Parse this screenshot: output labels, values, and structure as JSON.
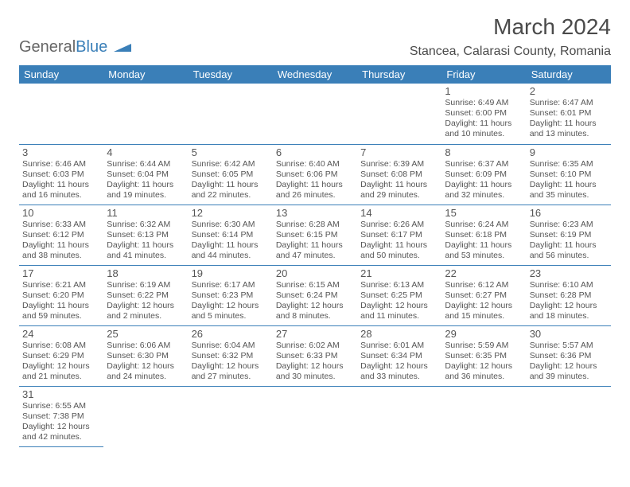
{
  "logo": {
    "part1": "General",
    "part2": "Blue"
  },
  "header": {
    "title": "March 2024",
    "location": "Stancea, Calarasi County, Romania"
  },
  "calendar": {
    "day_headers": [
      "Sunday",
      "Monday",
      "Tuesday",
      "Wednesday",
      "Thursday",
      "Friday",
      "Saturday"
    ],
    "first_weekday_index": 5,
    "days": [
      {
        "n": 1,
        "sr": "6:49 AM",
        "ss": "6:00 PM",
        "dl": "11 hours and 10 minutes."
      },
      {
        "n": 2,
        "sr": "6:47 AM",
        "ss": "6:01 PM",
        "dl": "11 hours and 13 minutes."
      },
      {
        "n": 3,
        "sr": "6:46 AM",
        "ss": "6:03 PM",
        "dl": "11 hours and 16 minutes."
      },
      {
        "n": 4,
        "sr": "6:44 AM",
        "ss": "6:04 PM",
        "dl": "11 hours and 19 minutes."
      },
      {
        "n": 5,
        "sr": "6:42 AM",
        "ss": "6:05 PM",
        "dl": "11 hours and 22 minutes."
      },
      {
        "n": 6,
        "sr": "6:40 AM",
        "ss": "6:06 PM",
        "dl": "11 hours and 26 minutes."
      },
      {
        "n": 7,
        "sr": "6:39 AM",
        "ss": "6:08 PM",
        "dl": "11 hours and 29 minutes."
      },
      {
        "n": 8,
        "sr": "6:37 AM",
        "ss": "6:09 PM",
        "dl": "11 hours and 32 minutes."
      },
      {
        "n": 9,
        "sr": "6:35 AM",
        "ss": "6:10 PM",
        "dl": "11 hours and 35 minutes."
      },
      {
        "n": 10,
        "sr": "6:33 AM",
        "ss": "6:12 PM",
        "dl": "11 hours and 38 minutes."
      },
      {
        "n": 11,
        "sr": "6:32 AM",
        "ss": "6:13 PM",
        "dl": "11 hours and 41 minutes."
      },
      {
        "n": 12,
        "sr": "6:30 AM",
        "ss": "6:14 PM",
        "dl": "11 hours and 44 minutes."
      },
      {
        "n": 13,
        "sr": "6:28 AM",
        "ss": "6:15 PM",
        "dl": "11 hours and 47 minutes."
      },
      {
        "n": 14,
        "sr": "6:26 AM",
        "ss": "6:17 PM",
        "dl": "11 hours and 50 minutes."
      },
      {
        "n": 15,
        "sr": "6:24 AM",
        "ss": "6:18 PM",
        "dl": "11 hours and 53 minutes."
      },
      {
        "n": 16,
        "sr": "6:23 AM",
        "ss": "6:19 PM",
        "dl": "11 hours and 56 minutes."
      },
      {
        "n": 17,
        "sr": "6:21 AM",
        "ss": "6:20 PM",
        "dl": "11 hours and 59 minutes."
      },
      {
        "n": 18,
        "sr": "6:19 AM",
        "ss": "6:22 PM",
        "dl": "12 hours and 2 minutes."
      },
      {
        "n": 19,
        "sr": "6:17 AM",
        "ss": "6:23 PM",
        "dl": "12 hours and 5 minutes."
      },
      {
        "n": 20,
        "sr": "6:15 AM",
        "ss": "6:24 PM",
        "dl": "12 hours and 8 minutes."
      },
      {
        "n": 21,
        "sr": "6:13 AM",
        "ss": "6:25 PM",
        "dl": "12 hours and 11 minutes."
      },
      {
        "n": 22,
        "sr": "6:12 AM",
        "ss": "6:27 PM",
        "dl": "12 hours and 15 minutes."
      },
      {
        "n": 23,
        "sr": "6:10 AM",
        "ss": "6:28 PM",
        "dl": "12 hours and 18 minutes."
      },
      {
        "n": 24,
        "sr": "6:08 AM",
        "ss": "6:29 PM",
        "dl": "12 hours and 21 minutes."
      },
      {
        "n": 25,
        "sr": "6:06 AM",
        "ss": "6:30 PM",
        "dl": "12 hours and 24 minutes."
      },
      {
        "n": 26,
        "sr": "6:04 AM",
        "ss": "6:32 PM",
        "dl": "12 hours and 27 minutes."
      },
      {
        "n": 27,
        "sr": "6:02 AM",
        "ss": "6:33 PM",
        "dl": "12 hours and 30 minutes."
      },
      {
        "n": 28,
        "sr": "6:01 AM",
        "ss": "6:34 PM",
        "dl": "12 hours and 33 minutes."
      },
      {
        "n": 29,
        "sr": "5:59 AM",
        "ss": "6:35 PM",
        "dl": "12 hours and 36 minutes."
      },
      {
        "n": 30,
        "sr": "5:57 AM",
        "ss": "6:36 PM",
        "dl": "12 hours and 39 minutes."
      },
      {
        "n": 31,
        "sr": "6:55 AM",
        "ss": "7:38 PM",
        "dl": "12 hours and 42 minutes."
      }
    ],
    "labels": {
      "sunrise": "Sunrise:",
      "sunset": "Sunset:",
      "daylight": "Daylight:"
    }
  },
  "styling": {
    "header_bg": "#3a7fb8",
    "header_fg": "#ffffff",
    "border_color": "#3a7fb8",
    "text_color": "#555555",
    "title_color": "#4a4a4a",
    "title_fontsize_pt": 21,
    "location_fontsize_pt": 12,
    "dayhdr_fontsize_pt": 10,
    "cell_fontsize_pt": 8,
    "font_family": "Arial"
  }
}
